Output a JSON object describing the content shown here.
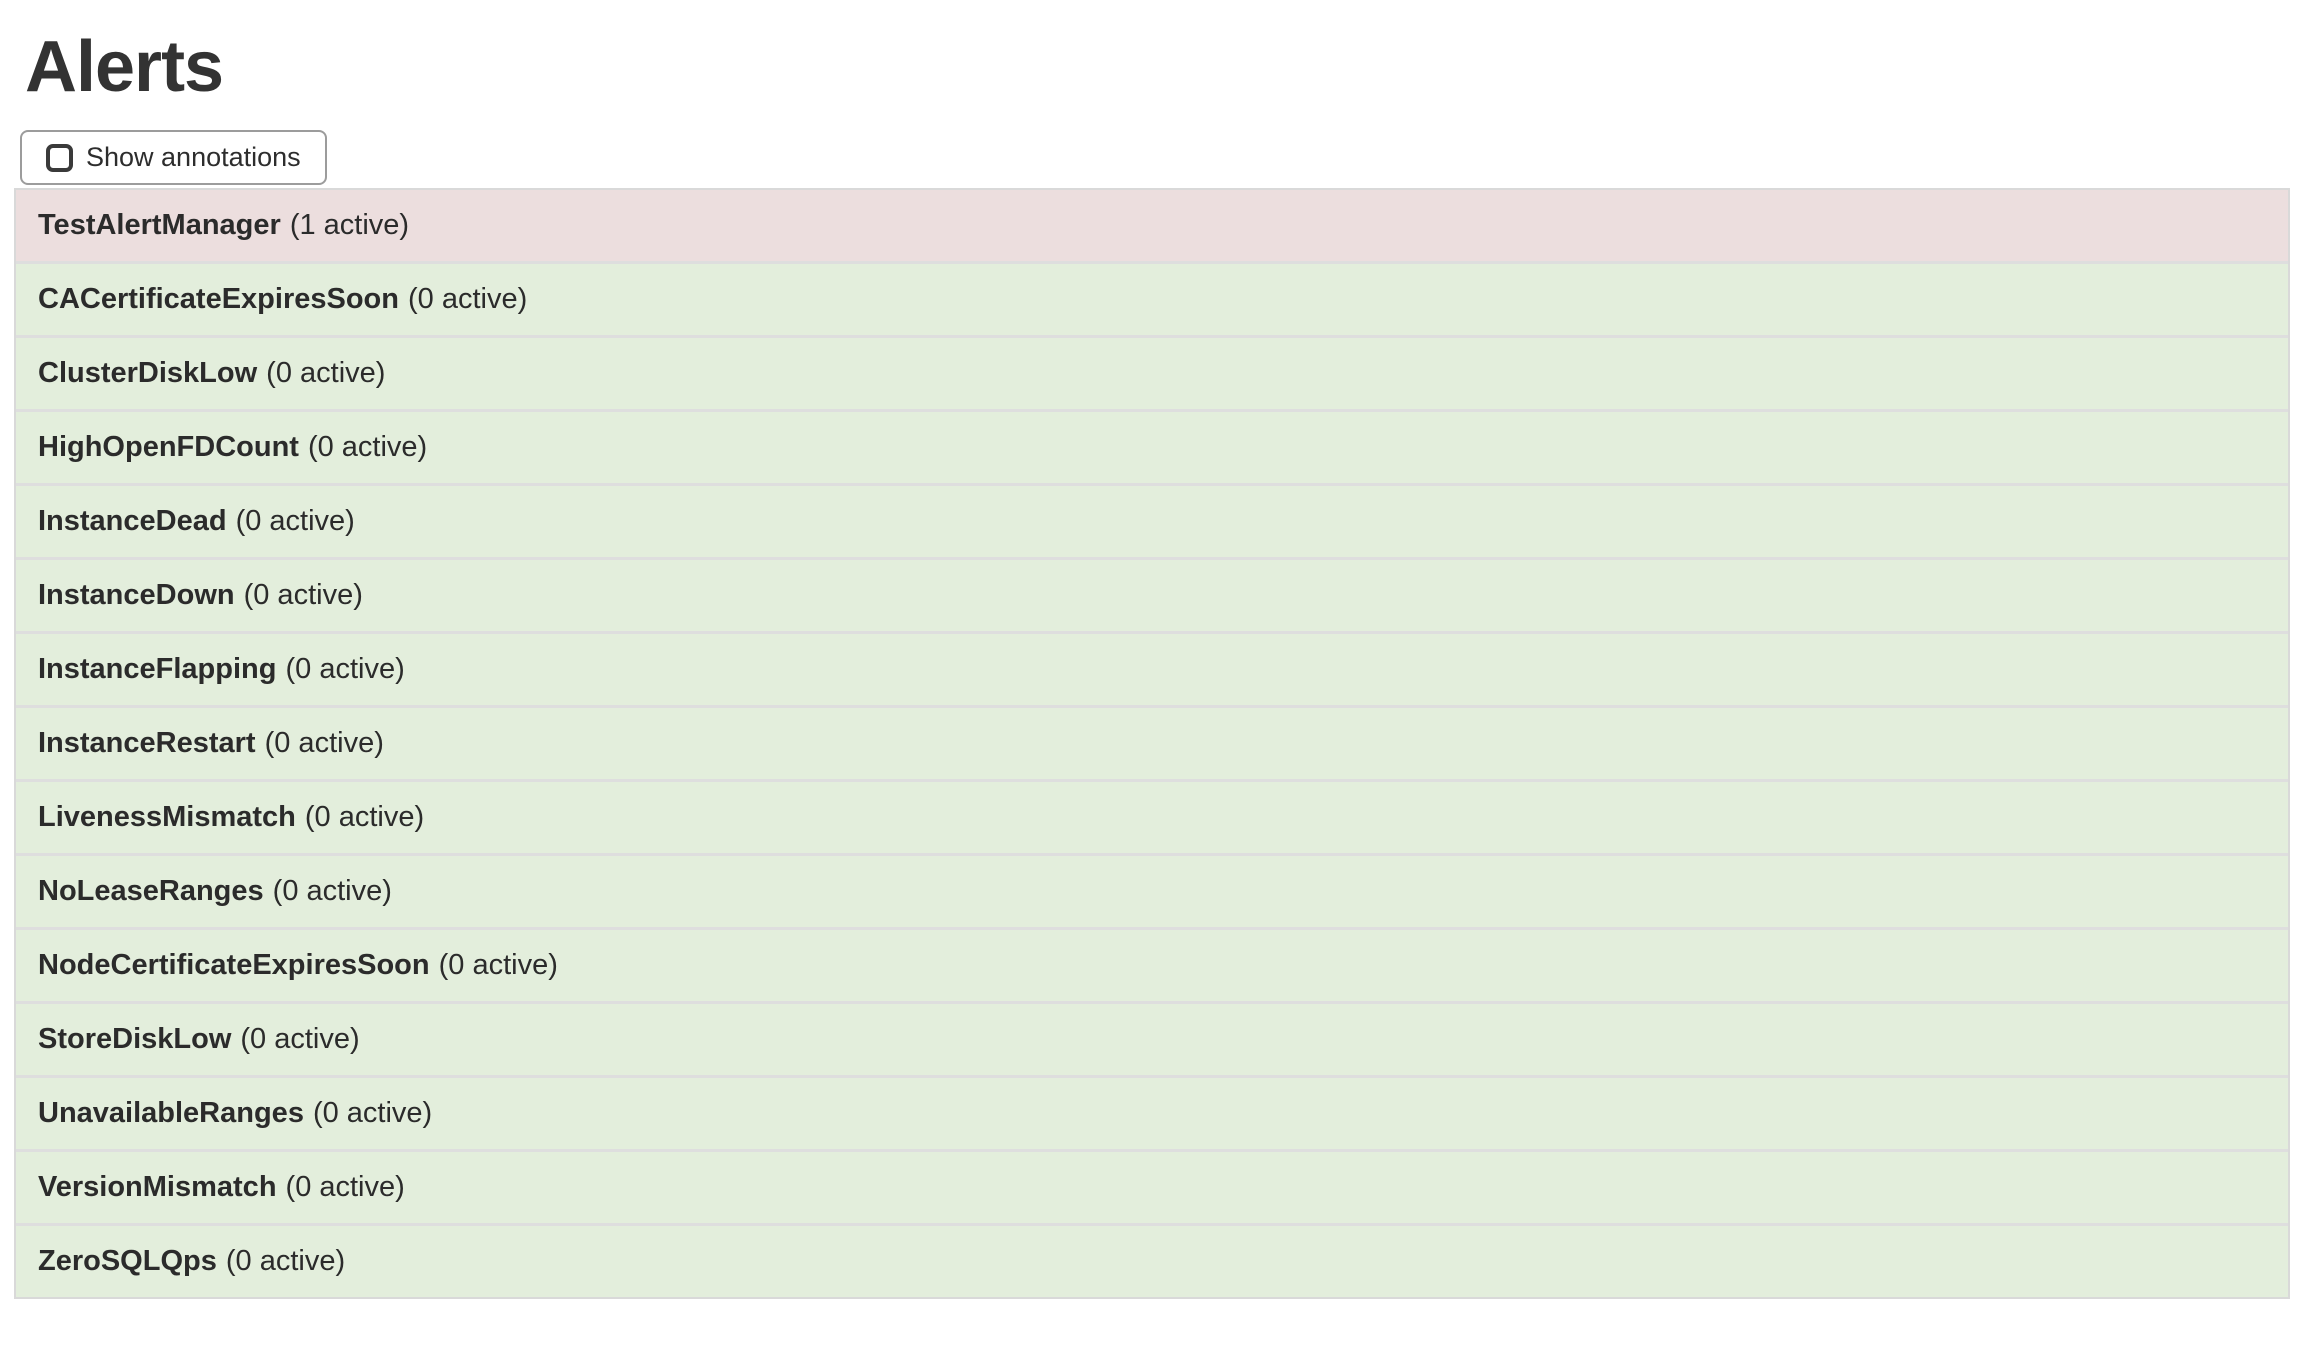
{
  "page": {
    "title": "Alerts"
  },
  "toolbar": {
    "show_annotations": {
      "label": "Show annotations",
      "checked": false
    }
  },
  "alerts": [
    {
      "name": "TestAlertManager",
      "active_count": 1,
      "count_label": "(1 active)",
      "state": "firing"
    },
    {
      "name": "CACertificateExpiresSoon",
      "active_count": 0,
      "count_label": "(0 active)",
      "state": "inactive"
    },
    {
      "name": "ClusterDiskLow",
      "active_count": 0,
      "count_label": "(0 active)",
      "state": "inactive"
    },
    {
      "name": "HighOpenFDCount",
      "active_count": 0,
      "count_label": "(0 active)",
      "state": "inactive"
    },
    {
      "name": "InstanceDead",
      "active_count": 0,
      "count_label": "(0 active)",
      "state": "inactive"
    },
    {
      "name": "InstanceDown",
      "active_count": 0,
      "count_label": "(0 active)",
      "state": "inactive"
    },
    {
      "name": "InstanceFlapping",
      "active_count": 0,
      "count_label": "(0 active)",
      "state": "inactive"
    },
    {
      "name": "InstanceRestart",
      "active_count": 0,
      "count_label": "(0 active)",
      "state": "inactive"
    },
    {
      "name": "LivenessMismatch",
      "active_count": 0,
      "count_label": "(0 active)",
      "state": "inactive"
    },
    {
      "name": "NoLeaseRanges",
      "active_count": 0,
      "count_label": "(0 active)",
      "state": "inactive"
    },
    {
      "name": "NodeCertificateExpiresSoon",
      "active_count": 0,
      "count_label": "(0 active)",
      "state": "inactive"
    },
    {
      "name": "StoreDiskLow",
      "active_count": 0,
      "count_label": "(0 active)",
      "state": "inactive"
    },
    {
      "name": "UnavailableRanges",
      "active_count": 0,
      "count_label": "(0 active)",
      "state": "inactive"
    },
    {
      "name": "VersionMismatch",
      "active_count": 0,
      "count_label": "(0 active)",
      "state": "inactive"
    },
    {
      "name": "ZeroSQLQps",
      "active_count": 0,
      "count_label": "(0 active)",
      "state": "inactive"
    }
  ],
  "colors": {
    "firing_bg": "#ecdede",
    "inactive_bg": "#e3eedc",
    "table_border": "#d9d9d9",
    "row_separator": "#dedede",
    "button_border": "#9c9c9c",
    "text": "#2d2d2d"
  }
}
